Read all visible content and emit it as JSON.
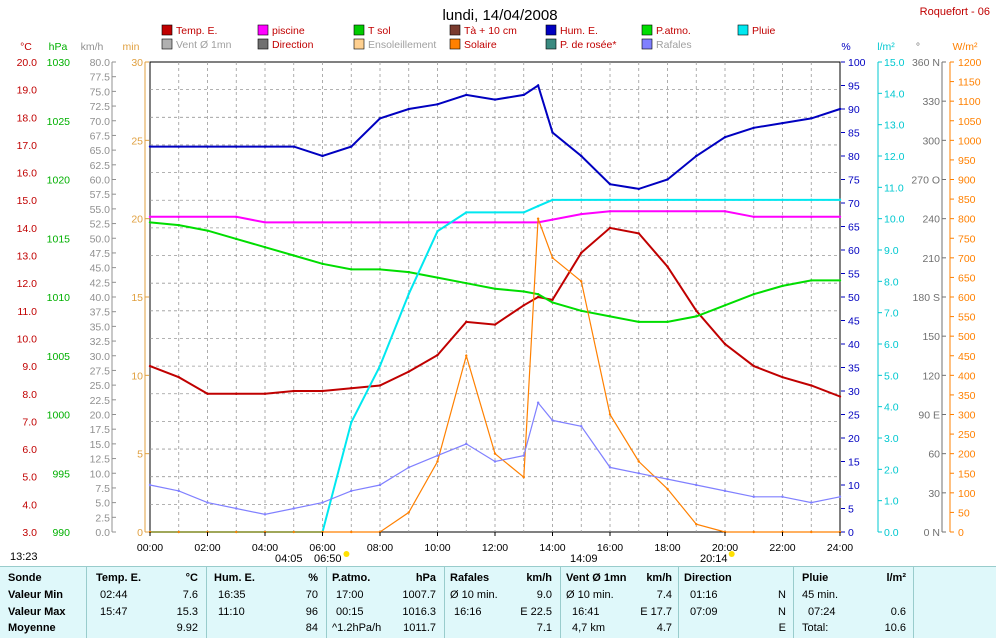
{
  "header": {
    "title": "lundi, 14/04/2008",
    "station": "Roquefort - 06"
  },
  "legend": [
    {
      "label": "Temp. E.",
      "color": "#c00000"
    },
    {
      "label": "piscine",
      "color": "#ff00ff"
    },
    {
      "label": "T sol",
      "color": "#00cc00"
    },
    {
      "label": "Tà + 10 cm",
      "color": "#7a3b2e"
    },
    {
      "label": "Hum. E.",
      "color": "#0000c0"
    },
    {
      "label": "P.atmo.",
      "color": "#00dd00"
    },
    {
      "label": "Pluie",
      "color": "#00e8f0"
    },
    {
      "label": "Vent Ø 1mn",
      "color": "#b0b0b0"
    },
    {
      "label": "Direction",
      "color": "#707070"
    },
    {
      "label": "Ensoleillement",
      "color": "#ffd090"
    },
    {
      "label": "Solaire",
      "color": "#ff8000"
    },
    {
      "label": "P. de rosée*",
      "color": "#3a8a80"
    },
    {
      "label": "Rafales",
      "color": "#8080ff"
    }
  ],
  "axes": {
    "temp": {
      "unit": "°C",
      "ticks": [
        "20.0",
        "19.0",
        "18.0",
        "17.0",
        "16.0",
        "15.0",
        "14.0",
        "13.0",
        "12.0",
        "11.0",
        "10.0",
        "9.0",
        "8.0",
        "7.0",
        "6.0",
        "5.0",
        "4.0",
        "3.0"
      ]
    },
    "press": {
      "unit": "hPa",
      "ticks": [
        "1030",
        "1025",
        "1020",
        "1015",
        "1010",
        "1005",
        "1000",
        "995",
        "990"
      ]
    },
    "wind": {
      "unit": "km/h",
      "ticks": [
        "80.0",
        "77.5",
        "75.0",
        "72.5",
        "70.0",
        "67.5",
        "65.0",
        "62.5",
        "60.0",
        "57.5",
        "55.0",
        "52.5",
        "50.0",
        "47.5",
        "45.0",
        "42.5",
        "40.0",
        "37.5",
        "35.0",
        "32.5",
        "30.0",
        "27.5",
        "25.0",
        "22.5",
        "20.0",
        "17.5",
        "15.0",
        "12.5",
        "10.0",
        "7.5",
        "5.0",
        "2.5",
        "0.0"
      ]
    },
    "min": {
      "unit": "min",
      "ticks": [
        "30",
        "25",
        "20",
        "15",
        "10",
        "5",
        "0"
      ]
    },
    "hum": {
      "unit": "%",
      "ticks": [
        "100",
        "95",
        "90",
        "85",
        "80",
        "75",
        "70",
        "65",
        "60",
        "55",
        "50",
        "45",
        "40",
        "35",
        "30",
        "25",
        "20",
        "15",
        "10",
        "5",
        "0"
      ]
    },
    "rain": {
      "unit": "l/m²",
      "ticks": [
        "15.0",
        "14.0",
        "13.0",
        "12.0",
        "11.0",
        "10.0",
        "9.0",
        "8.0",
        "7.0",
        "6.0",
        "5.0",
        "4.0",
        "3.0",
        "2.0",
        "1.0",
        "0.0"
      ]
    },
    "dir": {
      "unit": "°",
      "ticks": [
        "360 N",
        "330",
        "300",
        "270 O",
        "240",
        "210",
        "180 S",
        "150",
        "120",
        "90 E",
        "60",
        "30",
        "0 N"
      ]
    },
    "solar": {
      "unit": "W/m²",
      "ticks": [
        "1200",
        "1150",
        "1100",
        "1050",
        "1000",
        "950",
        "900",
        "850",
        "800",
        "750",
        "700",
        "650",
        "600",
        "550",
        "500",
        "450",
        "400",
        "350",
        "300",
        "250",
        "200",
        "150",
        "100",
        "50",
        "0"
      ]
    },
    "x": {
      "ticks": [
        "00:00",
        "02:00",
        "04:00",
        "06:00",
        "08:00",
        "10:00",
        "12:00",
        "14:00",
        "16:00",
        "18:00",
        "20:00",
        "22:00",
        "24:00"
      ]
    }
  },
  "sun_markers": {
    "sunrise": "06:50",
    "sunset": "20:14",
    "left": "13:23",
    "e1": "04:05",
    "e2": "14:09"
  },
  "chart_data": {
    "type": "line",
    "x_label": "",
    "x": [
      0,
      1,
      2,
      3,
      4,
      5,
      6,
      7,
      8,
      9,
      10,
      11,
      12,
      13,
      13.5,
      14,
      15,
      16,
      17,
      18,
      19,
      20,
      21,
      22,
      23,
      24
    ],
    "series": [
      {
        "name": "Temp. E.",
        "axis": "°C",
        "values": [
          9.0,
          8.6,
          8.0,
          8.0,
          8.0,
          8.1,
          8.1,
          8.2,
          8.3,
          8.8,
          9.4,
          10.6,
          10.5,
          11.2,
          11.5,
          11.4,
          13.1,
          14.0,
          13.8,
          12.6,
          11.0,
          9.8,
          9.0,
          8.6,
          8.3,
          7.9
        ]
      },
      {
        "name": "Hum. E.",
        "axis": "%",
        "values": [
          82,
          82,
          82,
          82,
          82,
          82,
          80,
          82,
          88,
          90,
          91,
          93,
          92,
          93,
          95,
          85,
          80,
          74,
          73,
          75,
          80,
          84,
          86,
          87,
          88,
          90
        ]
      },
      {
        "name": "T sol",
        "axis": "°C",
        "values": [
          14.2,
          14.1,
          13.9,
          13.6,
          13.3,
          13.0,
          12.7,
          12.5,
          12.5,
          12.4,
          12.2,
          12.0,
          11.8,
          11.7,
          11.6,
          11.3,
          11.0,
          10.8,
          10.6,
          10.6,
          10.8,
          11.2,
          11.6,
          11.9,
          12.1,
          12.1
        ]
      },
      {
        "name": "piscine",
        "axis": "°C",
        "values": [
          14.4,
          14.4,
          14.4,
          14.4,
          14.2,
          14.2,
          14.2,
          14.2,
          14.2,
          14.2,
          14.2,
          14.2,
          14.2,
          14.2,
          14.2,
          14.3,
          14.5,
          14.6,
          14.6,
          14.6,
          14.6,
          14.6,
          14.4,
          14.4,
          14.4,
          14.4
        ]
      },
      {
        "name": "Pluie",
        "axis": "l/m²",
        "values": [
          0,
          0,
          0,
          0,
          0,
          0,
          0,
          3.5,
          5.3,
          7.6,
          9.6,
          10.2,
          10.2,
          10.2,
          10.4,
          10.6,
          10.6,
          10.6,
          10.6,
          10.6,
          10.6,
          10.6,
          10.6,
          10.6,
          10.6,
          10.6
        ]
      },
      {
        "name": "Solaire",
        "axis": "W/m²",
        "values": [
          0,
          0,
          0,
          0,
          0,
          0,
          0,
          0,
          0,
          50,
          180,
          450,
          200,
          140,
          800,
          700,
          640,
          300,
          180,
          110,
          20,
          0,
          0,
          0,
          0,
          0
        ]
      },
      {
        "name": "Rafales",
        "axis": "km/h",
        "values": [
          8,
          7,
          5,
          4,
          3,
          4,
          5,
          7,
          8,
          11,
          13,
          15,
          12,
          13,
          22,
          19,
          18,
          11,
          10,
          9,
          8,
          7,
          6,
          6,
          5,
          6
        ]
      }
    ]
  },
  "summary": {
    "sonde": {
      "h": "Sonde",
      "min": "Valeur Min",
      "max": "Valeur Max",
      "moy": "Moyenne"
    },
    "temp": {
      "h": "Temp. E.",
      "u": "°C",
      "min_t": "02:44",
      "min_v": "7.6",
      "max_t": "15:47",
      "max_v": "15.3",
      "moy": "9.92"
    },
    "hum": {
      "h": "Hum. E.",
      "u": "%",
      "min_t": "16:35",
      "min_v": "70",
      "max_t": "11:10",
      "max_v": "96",
      "moy": "84"
    },
    "press": {
      "h": "P.atmo.",
      "u": "hPa",
      "min_t": "17:00",
      "min_v": "1007.7",
      "max_t": "00:15",
      "max_v": "1016.3",
      "moy_t": "^1.2hPa/h",
      "moy": "1011.7"
    },
    "raf": {
      "h": "Rafales",
      "u": "km/h",
      "min_t": "Ø 10 min.",
      "min_v": "9.0",
      "max_t": "16:16",
      "max_v": "E 22.5",
      "moy": "7.1"
    },
    "vent": {
      "h": "Vent Ø 1mn",
      "u": "km/h",
      "min_t": "Ø 10 min.",
      "min_v": "7.4",
      "max_t": "16:41",
      "max_v": "E 17.7",
      "moy_t": "4,7 km",
      "moy": "4.7"
    },
    "dir": {
      "h": "Direction",
      "min_t": "01:16",
      "min_v": "N",
      "max_t": "07:09",
      "max_v": "N",
      "moy": "E"
    },
    "pluie": {
      "h": "Pluie",
      "u": "l/m²",
      "min_t": "45 min.",
      "max_t": "07:24",
      "max_v": "0.6",
      "moy_t": "Total:",
      "moy": "10.6"
    }
  }
}
